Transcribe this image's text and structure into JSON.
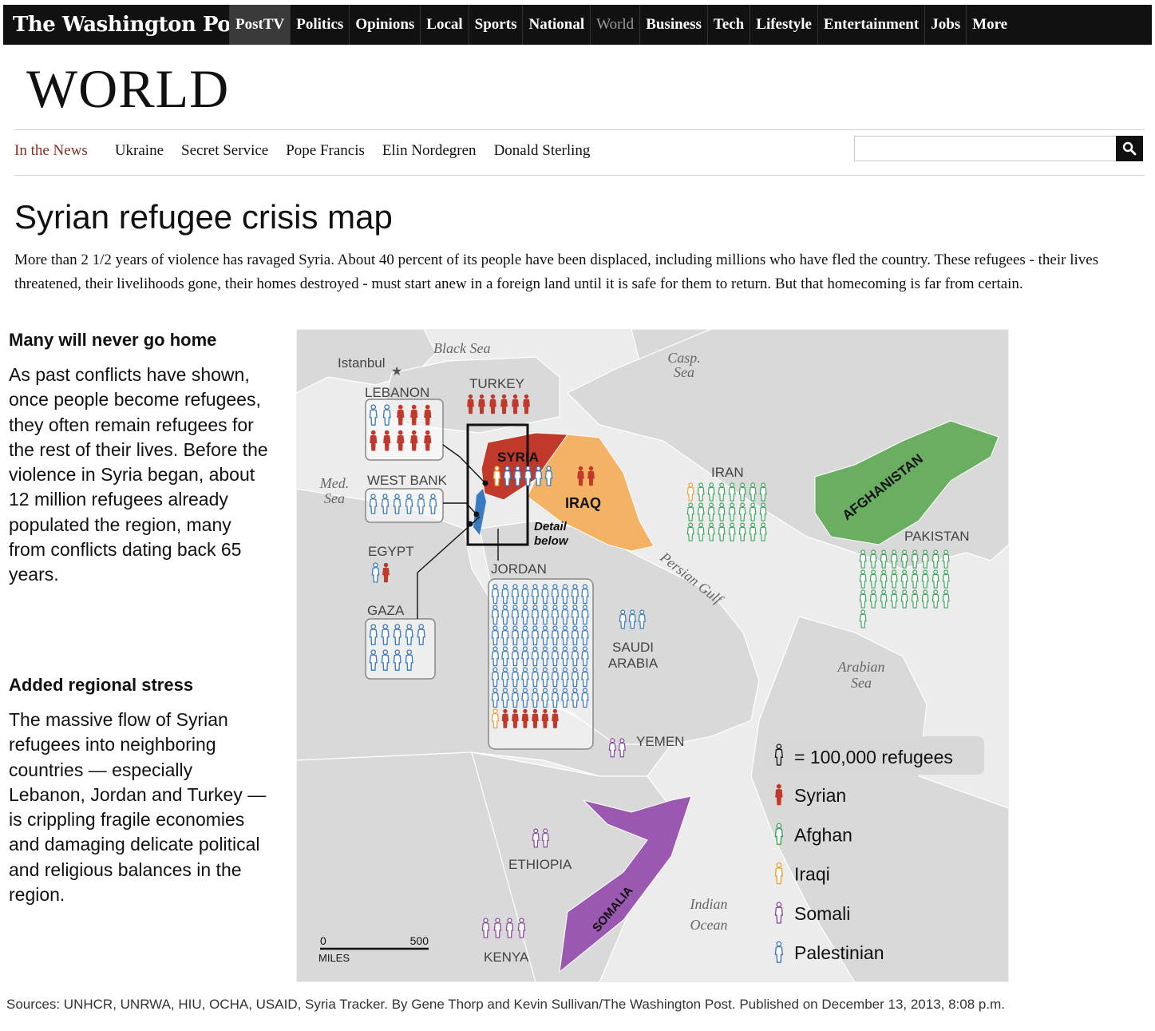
{
  "masthead": "The Washington Post",
  "nav": [
    "PostTV",
    "Politics",
    "Opinions",
    "Local",
    "Sports",
    "National",
    "World",
    "Business",
    "Tech",
    "Lifestyle",
    "Entertainment",
    "Jobs",
    "More"
  ],
  "nav_current": "World",
  "section_title": "WORLD",
  "in_the_news": {
    "label": "In the News",
    "topics": [
      "Ukraine",
      "Secret Service",
      "Pope Francis",
      "Elin Nordegren",
      "Donald Sterling"
    ]
  },
  "search": {
    "value": "",
    "icon": "search-icon"
  },
  "headline": "Syrian refugee crisis map",
  "intro": "More than 2 1/2 years of violence has ravaged Syria. About 40 percent of its people have been displaced, including millions who have fled the country. These refugees - their lives threatened, their livelihoods gone, their homes destroyed - must start anew in a foreign land until it is safe for them to return. But that homecoming is far from certain.",
  "sidebar": [
    {
      "heading": "Many will never go home",
      "body": "As past conflicts have shown, once people become refugees, they often remain refugees for the rest of their lives. Before the violence in Syria began, about 12 million refugees already populated the region, many from conflicts dating back 65 years."
    },
    {
      "heading": "Added regional stress",
      "body": "The massive flow of Syrian refugees into neighboring countries — especially Lebanon, Jordan and Turkey — is crippling fragile economies and damaging delicate political and religious balances in the region."
    }
  ],
  "map": {
    "water_labels": {
      "black_sea": "Black Sea",
      "casp_1": "Casp.",
      "casp_2": "Sea",
      "med_1": "Med.",
      "med_2": "Sea",
      "persian_gulf": "Persian Gulf",
      "arabian_1": "Arabian",
      "arabian_2": "Sea",
      "indian_1": "Indian",
      "indian_2": "Ocean"
    },
    "city": "Istanbul",
    "country_labels": {
      "syria": "SYRIA",
      "iraq": "IRAQ",
      "afghanistan": "AFGHANISTAN",
      "somalia": "SOMALIA",
      "iran": "IRAN",
      "pakistan": "PAKISTAN",
      "saudi_1": "SAUDI",
      "saudi_2": "ARABIA",
      "yemen": "YEMEN",
      "ethiopia": "ETHIOPIA",
      "kenya": "KENYA",
      "jordan": "JORDAN",
      "lebanon": "LEBANON",
      "turkey": "TURKEY",
      "west_bank": "WEST BANK",
      "egypt": "EGYPT",
      "gaza": "GAZA"
    },
    "detail_1": "Detail",
    "detail_2": "below",
    "scale": {
      "zero": "0",
      "max": "500",
      "unit": "MILES"
    },
    "colors": {
      "syrian": "#c0392b",
      "afghan": "#3aa55a",
      "iraqi": "#f0a030",
      "somali": "#8a4aa0",
      "palestinian": "#3a7ac0",
      "land": "#d9d9d9",
      "sea": "#ececec"
    },
    "counts": {
      "lebanon": [
        {
          "group": "palestinian",
          "n": 2
        },
        {
          "group": "syrian",
          "n": 8
        }
      ],
      "turkey": [
        {
          "group": "syrian",
          "n": 6
        }
      ],
      "syria": [
        {
          "group": "iraqi",
          "n": 1
        },
        {
          "group": "palestinian",
          "n": 5
        }
      ],
      "iraq": [
        {
          "group": "syrian",
          "n": 2
        }
      ],
      "iran": [
        {
          "group": "iraqi",
          "n": 1
        },
        {
          "group": "afghan",
          "n": 23
        }
      ],
      "pakistan": [
        {
          "group": "afghan",
          "n": 28
        }
      ],
      "west_bank": [
        {
          "group": "palestinian",
          "n": 6
        }
      ],
      "egypt": [
        {
          "group": "palestinian",
          "n": 1
        },
        {
          "group": "syrian",
          "n": 1
        }
      ],
      "gaza": [
        {
          "group": "palestinian",
          "n": 9
        }
      ],
      "jordan": [
        {
          "group": "palestinian",
          "n": 60
        },
        {
          "group": "iraqi",
          "n": 1
        },
        {
          "group": "syrian",
          "n": 6
        }
      ],
      "saudi_arabia": [
        {
          "group": "palestinian",
          "n": 3
        }
      ],
      "yemen": [
        {
          "group": "somali",
          "n": 2
        }
      ],
      "ethiopia": [
        {
          "group": "somali",
          "n": 2
        }
      ],
      "kenya": [
        {
          "group": "somali",
          "n": 4
        }
      ]
    },
    "legend": {
      "scale_label": "= 100,000 refugees",
      "items": [
        {
          "group": "syrian",
          "label": "Syrian"
        },
        {
          "group": "afghan",
          "label": "Afghan"
        },
        {
          "group": "iraqi",
          "label": "Iraqi"
        },
        {
          "group": "somali",
          "label": "Somali"
        },
        {
          "group": "palestinian",
          "label": "Palestinian"
        }
      ]
    }
  },
  "sources": "Sources: UNHCR, UNRWA, HIU, OCHA, USAID, Syria Tracker. By Gene Thorp and Kevin Sullivan/The Washington Post. Published on December 13, 2013, 8:08 p.m."
}
